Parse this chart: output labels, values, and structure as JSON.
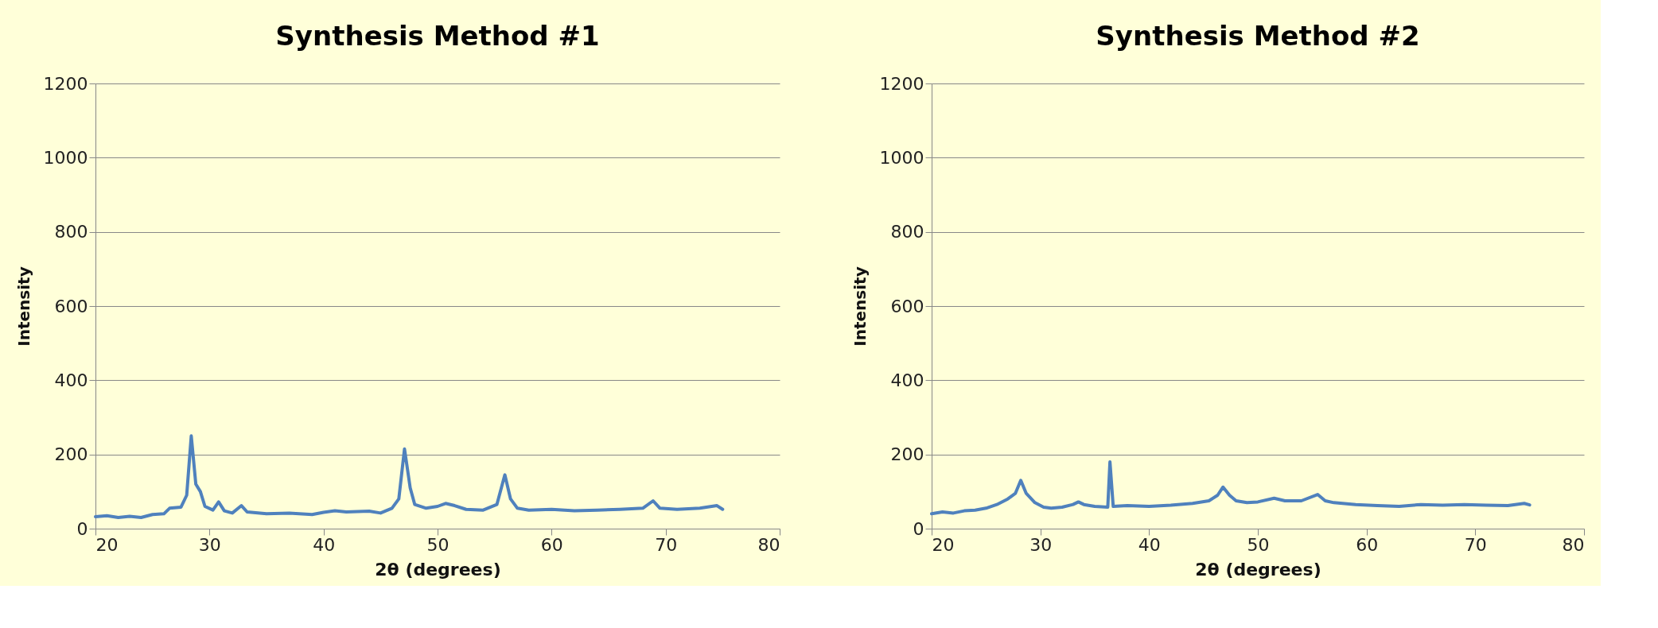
{
  "chart_data": [
    {
      "type": "line",
      "title": "Synthesis Method #1",
      "xlabel": "2θ (degrees)",
      "ylabel": "Intensity",
      "xlim": [
        20,
        80
      ],
      "xticks": [
        20,
        30,
        40,
        50,
        60,
        70,
        80
      ],
      "ylim": [
        0,
        1200
      ],
      "yticks": [
        0,
        200,
        400,
        600,
        800,
        1000,
        1200
      ],
      "grid": "y",
      "series": [
        {
          "color": "#4f81bd",
          "x": [
            20,
            21,
            22,
            23,
            24,
            25,
            26,
            26.5,
            27.5,
            28.0,
            28.4,
            28.8,
            29.2,
            29.6,
            30.3,
            30.8,
            31.3,
            32,
            32.8,
            33.3,
            35,
            37,
            39,
            40,
            41,
            42,
            44,
            45,
            46,
            46.6,
            47.1,
            47.6,
            48,
            49,
            50,
            50.7,
            51.5,
            52.5,
            54,
            55.2,
            55.9,
            56.4,
            57,
            58,
            60,
            62,
            64,
            66,
            68,
            68.9,
            69.5,
            71,
            73,
            74.5,
            75
          ],
          "values": [
            32,
            35,
            30,
            33,
            30,
            38,
            40,
            55,
            58,
            90,
            250,
            120,
            100,
            60,
            50,
            72,
            48,
            42,
            62,
            45,
            40,
            42,
            38,
            44,
            48,
            45,
            47,
            42,
            55,
            80,
            215,
            110,
            65,
            55,
            60,
            68,
            62,
            52,
            50,
            65,
            145,
            80,
            55,
            50,
            52,
            48,
            50,
            52,
            55,
            75,
            55,
            52,
            55,
            62,
            52
          ]
        }
      ]
    },
    {
      "type": "line",
      "title": "Synthesis Method #2",
      "xlabel": "2θ (degrees)",
      "ylabel": "Intensity",
      "xlim": [
        20,
        80
      ],
      "xticks": [
        20,
        30,
        40,
        50,
        60,
        70,
        80
      ],
      "ylim": [
        0,
        1200
      ],
      "yticks": [
        0,
        200,
        400,
        600,
        800,
        1000,
        1200
      ],
      "grid": "y",
      "series": [
        {
          "color": "#4f81bd",
          "x": [
            20,
            21,
            22,
            23,
            24,
            25,
            26,
            27,
            27.7,
            28.2,
            28.7,
            29.5,
            30.3,
            31,
            32,
            33,
            33.5,
            34,
            35,
            36.2,
            36.4,
            36.7,
            38,
            40,
            42,
            44,
            45.5,
            46.3,
            46.8,
            47.4,
            48,
            49,
            50,
            51.5,
            52.5,
            54,
            55.5,
            56.2,
            57,
            59,
            61,
            63,
            65,
            67,
            69,
            71,
            73,
            74.5,
            75
          ],
          "values": [
            40,
            45,
            42,
            48,
            50,
            55,
            65,
            80,
            95,
            130,
            95,
            70,
            58,
            55,
            58,
            65,
            72,
            65,
            60,
            58,
            180,
            60,
            62,
            60,
            63,
            68,
            75,
            90,
            112,
            90,
            75,
            70,
            72,
            82,
            75,
            75,
            92,
            75,
            70,
            65,
            62,
            60,
            65,
            63,
            65,
            63,
            62,
            68,
            64
          ]
        }
      ]
    }
  ]
}
